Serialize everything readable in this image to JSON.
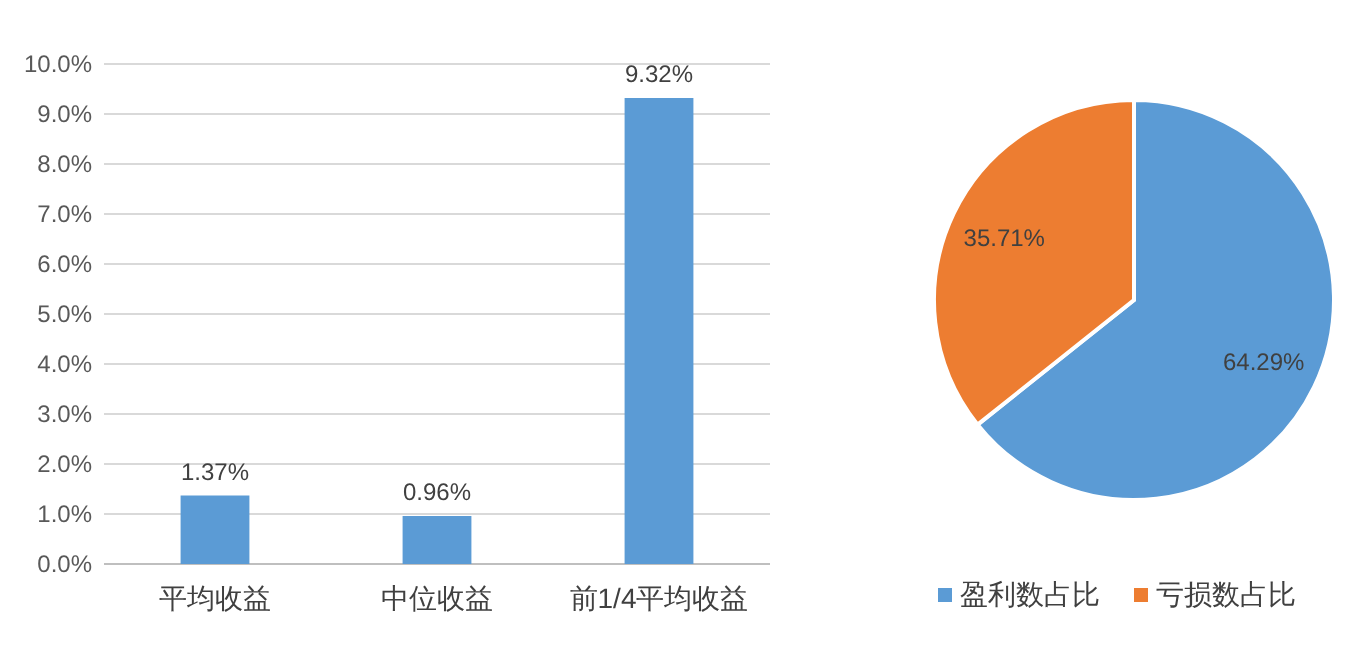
{
  "chart_data": [
    {
      "type": "bar",
      "categories": [
        "平均收益",
        "中位收益",
        "前1/4平均收益"
      ],
      "values": [
        1.37,
        0.96,
        9.32
      ],
      "color": "#5b9bd5",
      "value_labels": [
        "1.37%",
        "0.96%",
        "9.32%"
      ],
      "ylim": [
        0,
        10
      ],
      "yticks": [
        {
          "value": 0,
          "label": "0.0%"
        },
        {
          "value": 1,
          "label": "1.0%"
        },
        {
          "value": 2,
          "label": "2.0%"
        },
        {
          "value": 3,
          "label": "3.0%"
        },
        {
          "value": 4,
          "label": "4.0%"
        },
        {
          "value": 5,
          "label": "5.0%"
        },
        {
          "value": 6,
          "label": "6.0%"
        },
        {
          "value": 7,
          "label": "7.0%"
        },
        {
          "value": 8,
          "label": "8.0%"
        },
        {
          "value": 9,
          "label": "9.0%"
        },
        {
          "value": 10,
          "label": "10.0%"
        }
      ],
      "grid": "y",
      "legend": false
    },
    {
      "type": "pie",
      "categories": [
        "盈利数占比",
        "亏损数占比"
      ],
      "values": [
        64.29,
        35.71
      ],
      "colors": [
        "#5b9bd5",
        "#ed7d31"
      ],
      "value_labels": [
        "64.29%",
        "35.71%"
      ],
      "legend": "bottom"
    }
  ]
}
